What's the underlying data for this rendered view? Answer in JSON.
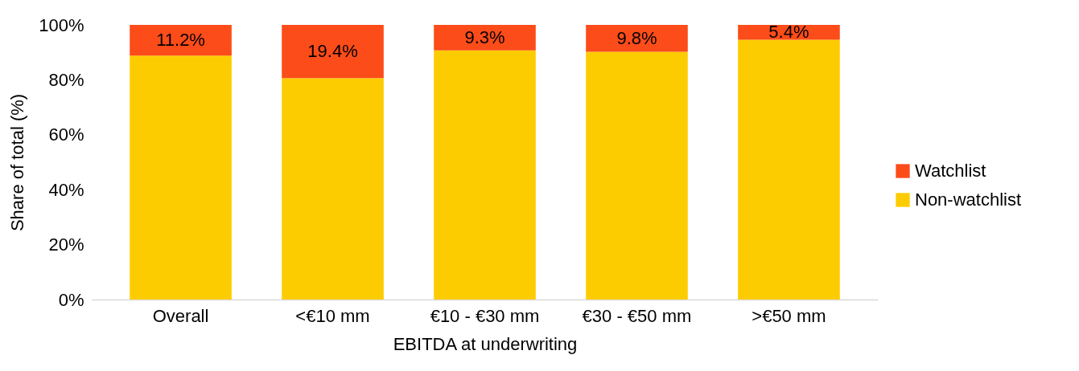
{
  "chart_data": {
    "type": "bar",
    "stacked": true,
    "xlabel": "EBITDA at underwriting",
    "ylabel": "Share of total (%)",
    "categories": [
      "Overall",
      "<€10 mm",
      "€10 - €30 mm",
      "€30 - €50 mm",
      ">€50 mm"
    ],
    "series": [
      {
        "name": "Non-watchlist",
        "color": "#fdcc00",
        "values": [
          88.8,
          80.6,
          90.7,
          90.2,
          94.6
        ]
      },
      {
        "name": "Watchlist",
        "color": "#fc4c1a",
        "values": [
          11.2,
          19.4,
          9.3,
          9.8,
          5.4
        ],
        "value_labels": [
          "11.2%",
          "19.4%",
          "9.3%",
          "9.8%",
          "5.4%"
        ]
      }
    ],
    "ylim": [
      0,
      100
    ],
    "yticks": [
      {
        "value": 0,
        "label": "0%"
      },
      {
        "value": 20,
        "label": "20%"
      },
      {
        "value": 40,
        "label": "40%"
      },
      {
        "value": 60,
        "label": "60%"
      },
      {
        "value": 80,
        "label": "80%"
      },
      {
        "value": 100,
        "label": "100%"
      }
    ],
    "grid": false,
    "legend": "right"
  }
}
